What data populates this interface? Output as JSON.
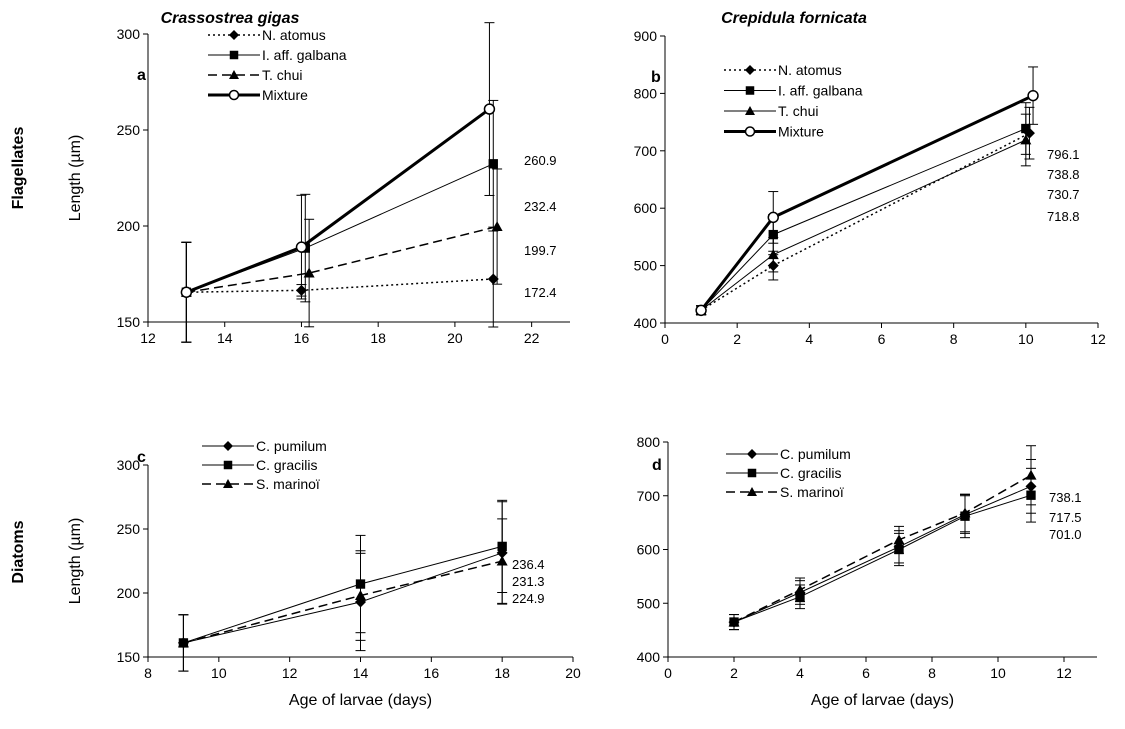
{
  "column_titles": [
    "Crassostrea gigas",
    "Crepidula fornicata"
  ],
  "row_titles": [
    "Flagellates",
    "Diatoms"
  ],
  "chart_data": [
    {
      "panel": "a",
      "type": "line",
      "xlim": [
        12,
        23
      ],
      "xticks": [
        12,
        14,
        16,
        18,
        20,
        22
      ],
      "ylim": [
        150,
        300
      ],
      "yticks": [
        150,
        200,
        250,
        300
      ],
      "ylabel": "Length (µm)",
      "xlabel": "",
      "series": [
        {
          "name": "N. atomus",
          "marker": "diamond",
          "line": "dotted",
          "x": [
            13,
            16,
            21
          ],
          "y": [
            165.5,
            166.5,
            172.4
          ],
          "err": [
            26,
            3,
            25
          ]
        },
        {
          "name": "I. aff. galbana",
          "marker": "square",
          "line": "thin",
          "x": [
            13,
            16.1,
            21
          ],
          "y": [
            165.5,
            188.5,
            232.4
          ],
          "err": [
            26,
            28,
            33
          ]
        },
        {
          "name": "T. chui",
          "marker": "triangle",
          "line": "dashed",
          "x": [
            13,
            16.2,
            21.1
          ],
          "y": [
            165.5,
            175.5,
            199.7
          ],
          "err": [
            26,
            28,
            30
          ]
        },
        {
          "name": "Mixture",
          "marker": "circle",
          "line": "thick",
          "x": [
            13,
            16,
            20.9
          ],
          "y": [
            165.5,
            189,
            260.9
          ],
          "err": [
            26,
            27,
            45
          ]
        }
      ],
      "end_labels": [
        "260.9",
        "232.4",
        "199.7",
        "172.4"
      ]
    },
    {
      "panel": "b",
      "type": "line",
      "xlim": [
        0,
        12
      ],
      "xticks": [
        0,
        2,
        4,
        6,
        8,
        10,
        12
      ],
      "ylim": [
        400,
        900
      ],
      "yticks": [
        400,
        500,
        600,
        700,
        800,
        900
      ],
      "ylabel": "",
      "xlabel": "",
      "series": [
        {
          "name": "N. atomus",
          "marker": "diamond",
          "line": "dotted",
          "x": [
            1,
            3,
            10.1
          ],
          "y": [
            422,
            500,
            730.7
          ],
          "err": [
            8,
            25,
            45
          ]
        },
        {
          "name": "I. aff. galbana",
          "marker": "square",
          "line": "thin",
          "x": [
            1,
            3,
            10
          ],
          "y": [
            422,
            554,
            738.8
          ],
          "err": [
            8,
            35,
            45
          ]
        },
        {
          "name": "T. chui",
          "marker": "triangle",
          "line": "thin",
          "x": [
            1,
            3,
            10
          ],
          "y": [
            422,
            519,
            718.8
          ],
          "err": [
            8,
            30,
            45
          ]
        },
        {
          "name": "Mixture",
          "marker": "circle",
          "line": "thick",
          "x": [
            1,
            3,
            10.2
          ],
          "y": [
            422,
            584,
            796.1
          ],
          "err": [
            8,
            45,
            50
          ]
        }
      ],
      "end_labels": [
        "796.1",
        "738.8",
        "730.7",
        "718.8"
      ]
    },
    {
      "panel": "c",
      "type": "line",
      "xlim": [
        8,
        20
      ],
      "xticks": [
        8,
        10,
        12,
        14,
        16,
        18,
        20
      ],
      "ylim": [
        150,
        300
      ],
      "yticks": [
        150,
        200,
        250,
        300
      ],
      "ylabel": "Length (µm)",
      "xlabel": "Age of larvae (days)",
      "series": [
        {
          "name": "C. pumilum",
          "marker": "diamond",
          "line": "thin",
          "x": [
            9,
            14,
            18
          ],
          "y": [
            161,
            193,
            231.3
          ],
          "err": [
            22,
            38,
            40
          ]
        },
        {
          "name": "C. gracilis",
          "marker": "square",
          "line": "thin",
          "x": [
            9,
            14,
            18
          ],
          "y": [
            161,
            207,
            236.4
          ],
          "err": [
            22,
            38,
            36
          ]
        },
        {
          "name": "S. marinoï",
          "marker": "triangle",
          "line": "dashed",
          "x": [
            9,
            14,
            18
          ],
          "y": [
            161,
            198,
            224.9
          ],
          "err": [
            22,
            35,
            33
          ]
        }
      ],
      "end_labels": [
        "236.4",
        "231.3",
        "224.9"
      ]
    },
    {
      "panel": "d",
      "type": "line",
      "xlim": [
        0,
        13
      ],
      "xticks": [
        0,
        2,
        4,
        6,
        8,
        10,
        12
      ],
      "ylim": [
        400,
        800
      ],
      "yticks": [
        400,
        500,
        600,
        700,
        800
      ],
      "ylabel": "",
      "xlabel": "Age of larvae (days)",
      "series": [
        {
          "name": "C. pumilum",
          "marker": "diamond",
          "line": "thin",
          "x": [
            2,
            4,
            7,
            9,
            11
          ],
          "y": [
            465,
            520,
            605,
            665,
            717.5
          ],
          "err": [
            14,
            22,
            30,
            35,
            50
          ]
        },
        {
          "name": "C. gracilis",
          "marker": "square",
          "line": "thin",
          "x": [
            2,
            4,
            7,
            9,
            11
          ],
          "y": [
            465,
            512,
            600,
            662,
            701.0
          ],
          "err": [
            14,
            22,
            30,
            40,
            50
          ]
        },
        {
          "name": "S. marinoï",
          "marker": "triangle",
          "line": "dashed",
          "x": [
            2,
            4,
            7,
            9,
            11
          ],
          "y": [
            465,
            525,
            618,
            668,
            738.1
          ],
          "err": [
            14,
            22,
            25,
            35,
            55
          ]
        }
      ],
      "end_labels": [
        "738.1",
        "717.5",
        "701.0"
      ]
    }
  ]
}
